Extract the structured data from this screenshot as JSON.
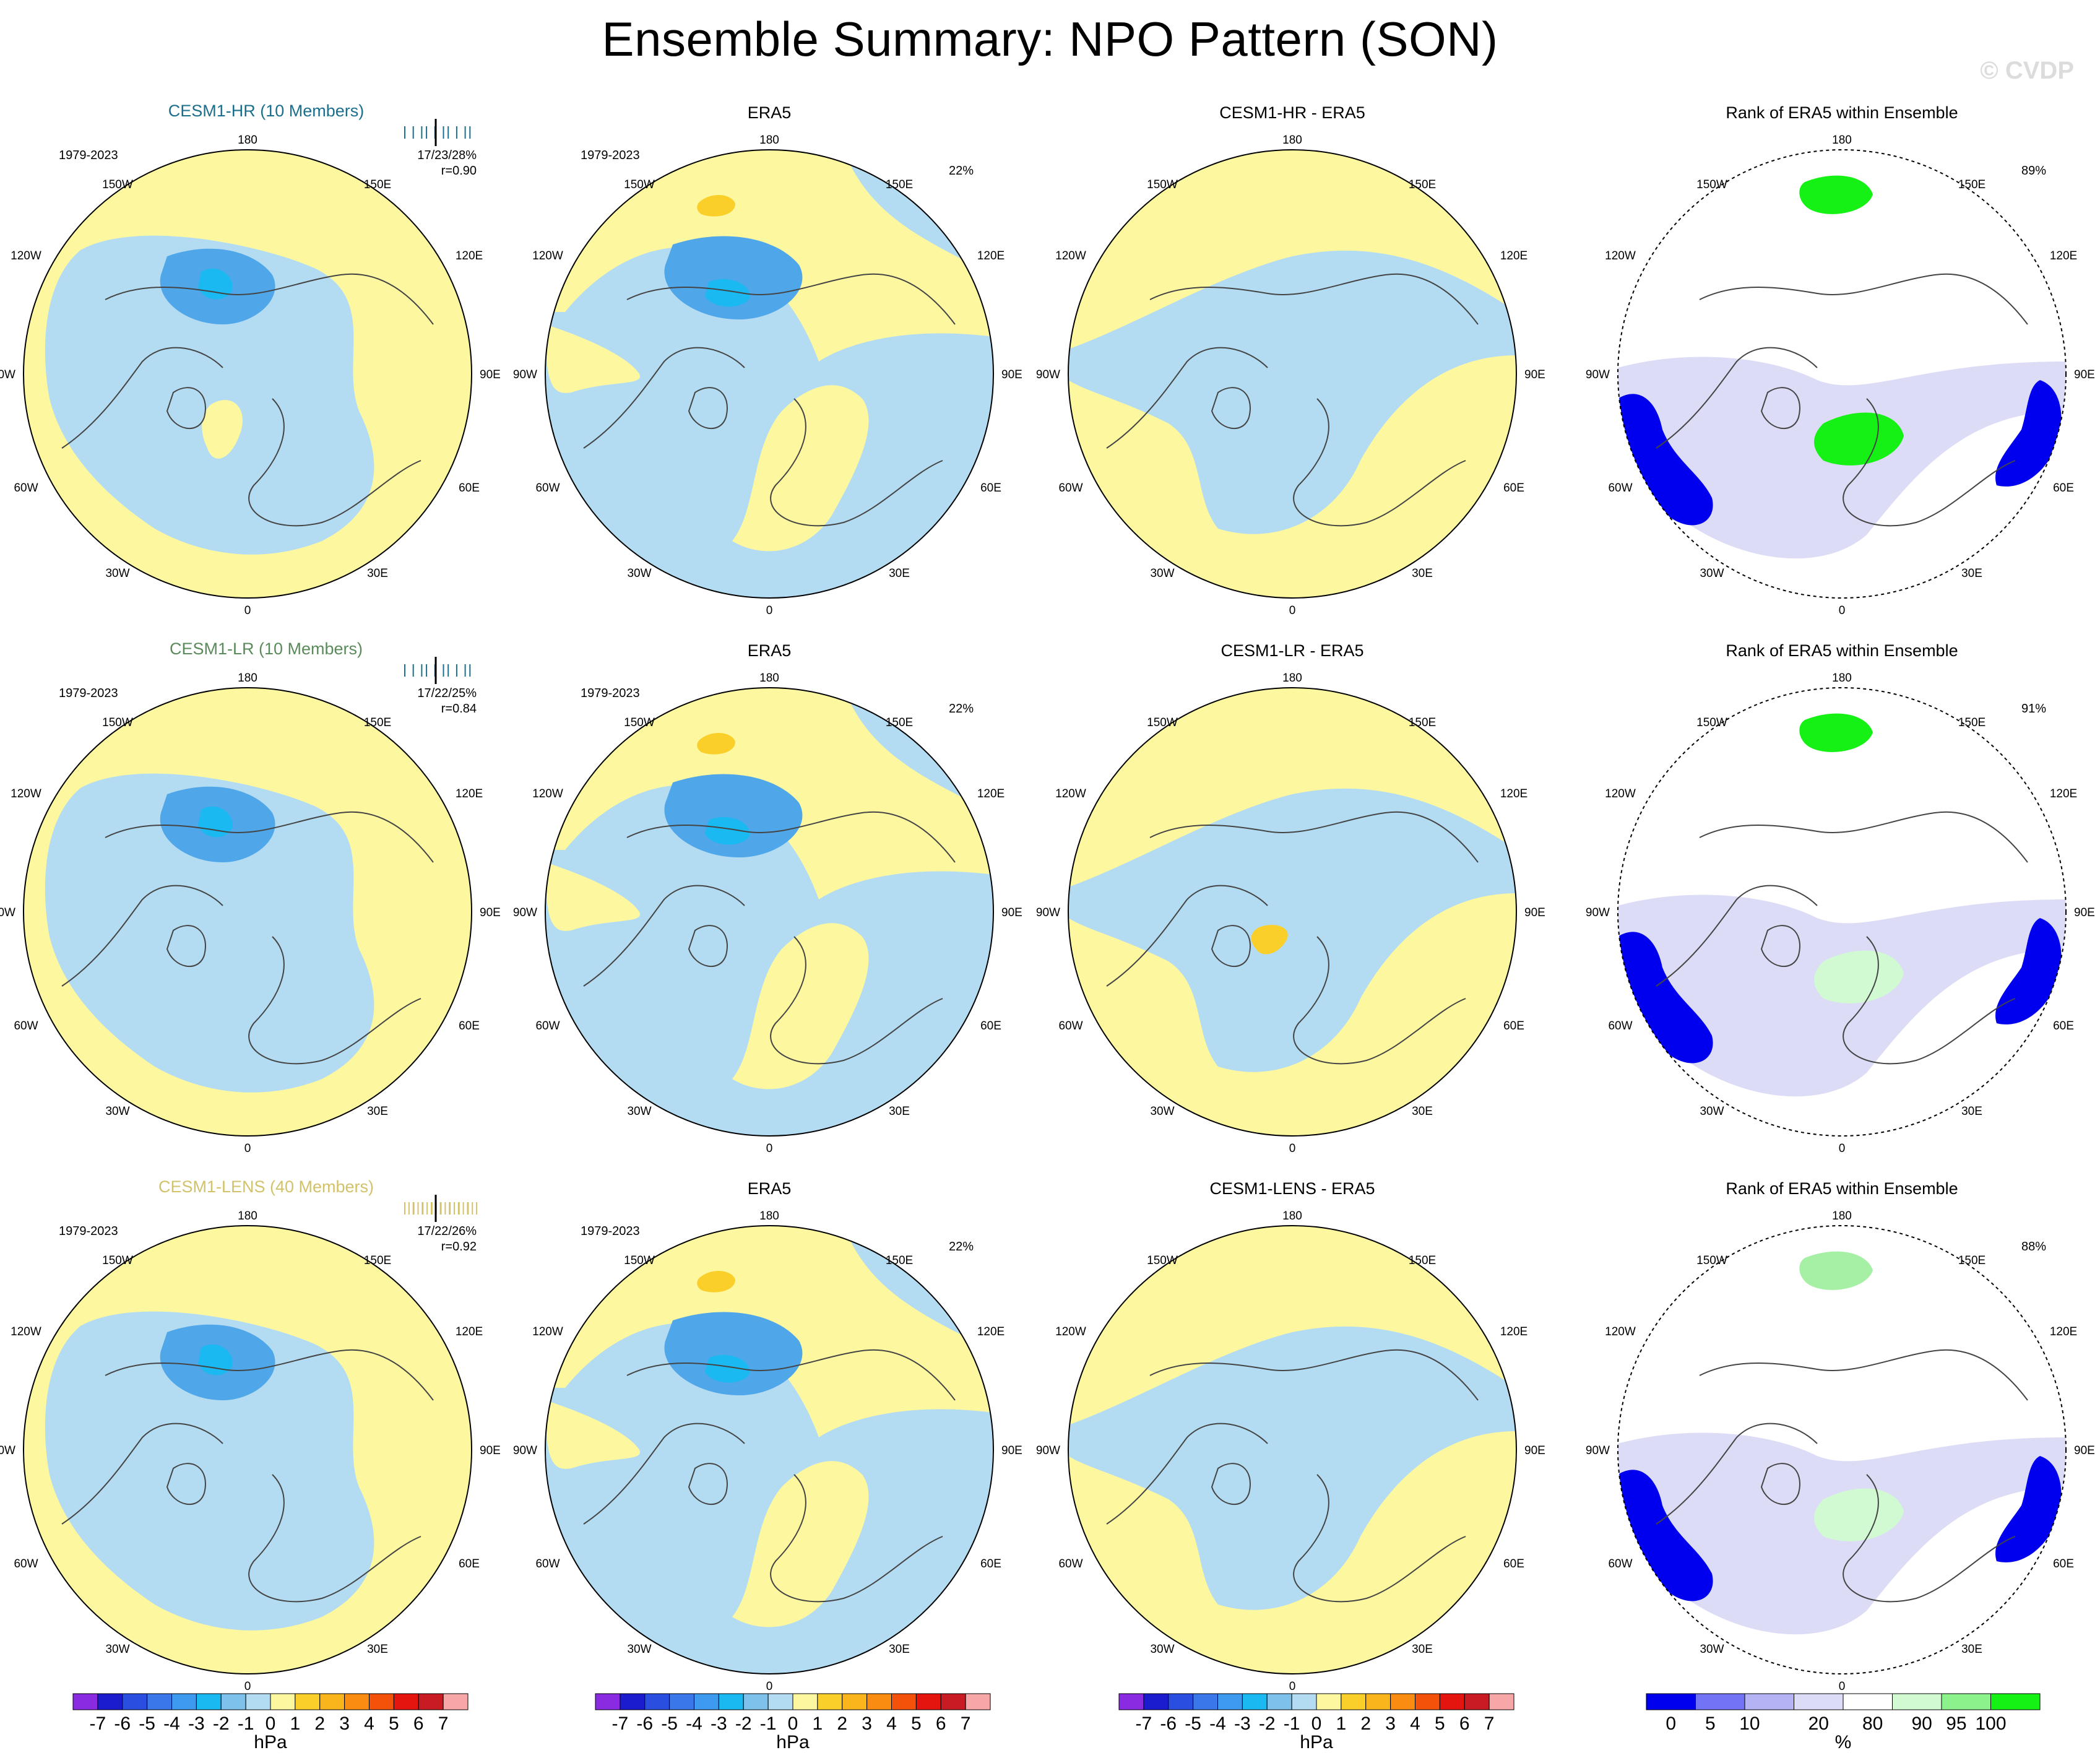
{
  "title": "Ensemble Summary: NPO Pattern (SON)",
  "watermark": "© CVDP",
  "colors": {
    "sky": "#b3dcf2",
    "yellow": "#fdf7a0",
    "midblue": "#7ec2ec",
    "blue": "#4fa6e9",
    "cyan": "#1ab9f2",
    "gold": "#fbcf2a",
    "rank_dark": "#0000ee",
    "rank_light": "#dcdcf7",
    "rank_green": "#15f015",
    "rank_lightgreen": "#d2fad2",
    "hr_title": "#1b6f8c",
    "lr_title": "#5b8a5b",
    "lens_title": "#d2c26c"
  },
  "polar_labels": {
    "top": "180",
    "bottom": "0",
    "left_upper": "150W",
    "right_upper": "150E",
    "left_mid_upper": "120W",
    "right_mid_upper": "120E",
    "left_mid": "90W",
    "right_mid": "90E",
    "left_mid_lower": "60W",
    "right_mid_lower": "60E",
    "left_lower": "30W",
    "right_lower": "30E"
  },
  "rows": [
    {
      "model": {
        "title": "CESM1-HR (10 Members)",
        "years": "1979-2023",
        "stats": "17/23/28%",
        "corr": "r=0.90"
      },
      "obs": {
        "title": "ERA5",
        "years": "1979-2023",
        "pct": "22%"
      },
      "diff": {
        "title": "CESM1-HR - ERA5"
      },
      "rank": {
        "title": "Rank of ERA5 within Ensemble",
        "pct": "89%"
      }
    },
    {
      "model": {
        "title": "CESM1-LR (10 Members)",
        "years": "1979-2023",
        "stats": "17/22/25%",
        "corr": "r=0.84"
      },
      "obs": {
        "title": "ERA5",
        "years": "1979-2023",
        "pct": "22%"
      },
      "diff": {
        "title": "CESM1-LR - ERA5"
      },
      "rank": {
        "title": "Rank of ERA5 within Ensemble",
        "pct": "91%"
      }
    },
    {
      "model": {
        "title": "CESM1-LENS (40 Members)",
        "years": "1979-2023",
        "stats": "17/22/26%",
        "corr": "r=0.92"
      },
      "obs": {
        "title": "ERA5",
        "years": "1979-2023",
        "pct": "22%"
      },
      "diff": {
        "title": "CESM1-LENS - ERA5"
      },
      "rank": {
        "title": "Rank of ERA5 within Ensemble",
        "pct": "88%"
      }
    }
  ],
  "chart_data": [
    {
      "type": "colorbar",
      "label": "hPa",
      "tick_labels": [
        "-7",
        "-6",
        "-5",
        "-4",
        "-3",
        "-2",
        "-1",
        "0",
        "1",
        "2",
        "3",
        "4",
        "5",
        "6",
        "7"
      ],
      "colors": [
        "#8a2be2",
        "#1c1ccf",
        "#2a4fe0",
        "#3a78ea",
        "#3d9aee",
        "#1ab9f2",
        "#7ec2ec",
        "#b3dcf2",
        "#fdf7a0",
        "#fbcf2a",
        "#fbb51c",
        "#fa8c11",
        "#f4520b",
        "#e3150e",
        "#c81b24",
        "#f7a7a7"
      ],
      "applies_to": "model, ERA5 and difference panels"
    },
    {
      "type": "colorbar",
      "label": "%",
      "tick_labels": [
        "0",
        "5",
        "10",
        "20",
        "80",
        "90",
        "95",
        "100"
      ],
      "colors": [
        "#0000ee",
        "#7373f5",
        "#b4b4f5",
        "#dcdcf7",
        "#ffffff",
        "#d2fad2",
        "#8cf28c",
        "#15f015"
      ],
      "applies_to": "rank panels"
    }
  ]
}
